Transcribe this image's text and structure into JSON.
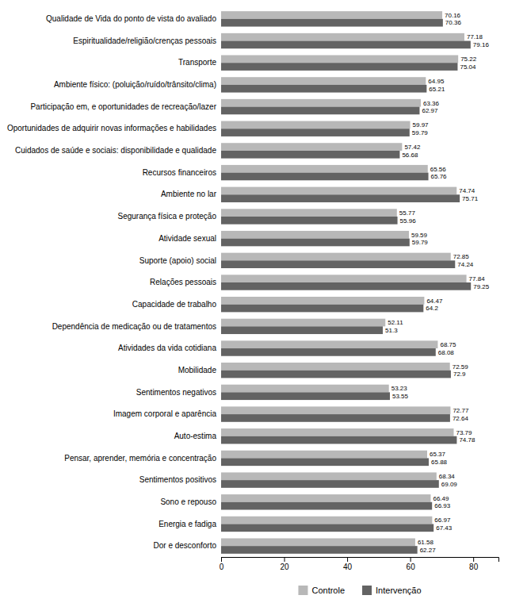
{
  "chart_data": {
    "type": "bar",
    "orientation": "horizontal",
    "categories": [
      "Qualidade de Vida do ponto de vista do avaliado",
      "Espiritualidade/religião/crenças pessoais",
      "Transporte",
      "Ambiente físico: (poluição/ruído/trânsito/clima)",
      "Participação em, e oportunidades de recreação/lazer",
      "Oportunidades de adquirir novas informações e habilidades",
      "Cuidados de saúde e sociais: disponibilidade e qualidade",
      "Recursos financeiros",
      "Ambiente no lar",
      "Segurança física e proteção",
      "Atividade sexual",
      "Suporte (apoio) social",
      "Relações pessoais",
      "Capacidade de trabalho",
      "Dependência de medicação ou de tratamentos",
      "Atividades da vida cotidiana",
      "Mobilidade",
      "Sentimentos negativos",
      "Imagem corporal e aparência",
      "Auto-estima",
      "Pensar, aprender, memória e concentração",
      "Sentimentos positivos",
      "Sono e repouso",
      "Energia e fadiga",
      "Dor e desconforto"
    ],
    "series": [
      {
        "name": "Controle",
        "color": "#b8b8b8",
        "values": [
          70.16,
          77.18,
          75.22,
          64.95,
          63.36,
          59.97,
          57.42,
          65.56,
          74.74,
          55.77,
          59.59,
          72.85,
          77.84,
          64.47,
          52.11,
          68.75,
          72.59,
          53.23,
          72.77,
          73.79,
          65.37,
          68.34,
          66.49,
          66.97,
          61.58
        ]
      },
      {
        "name": "Intervenção",
        "color": "#636363",
        "values": [
          70.36,
          79.16,
          75.04,
          65.21,
          62.97,
          59.79,
          56.68,
          65.76,
          75.71,
          55.96,
          59.79,
          74.24,
          79.25,
          64.2,
          51.3,
          68.08,
          72.9,
          53.55,
          72.64,
          74.78,
          65.88,
          69.09,
          66.93,
          67.43,
          62.27
        ]
      }
    ],
    "xlim": [
      0,
      88
    ],
    "xticks": [
      0,
      20,
      40,
      60,
      80
    ],
    "data_labels": true,
    "legend": "bottom",
    "grid": false
  }
}
